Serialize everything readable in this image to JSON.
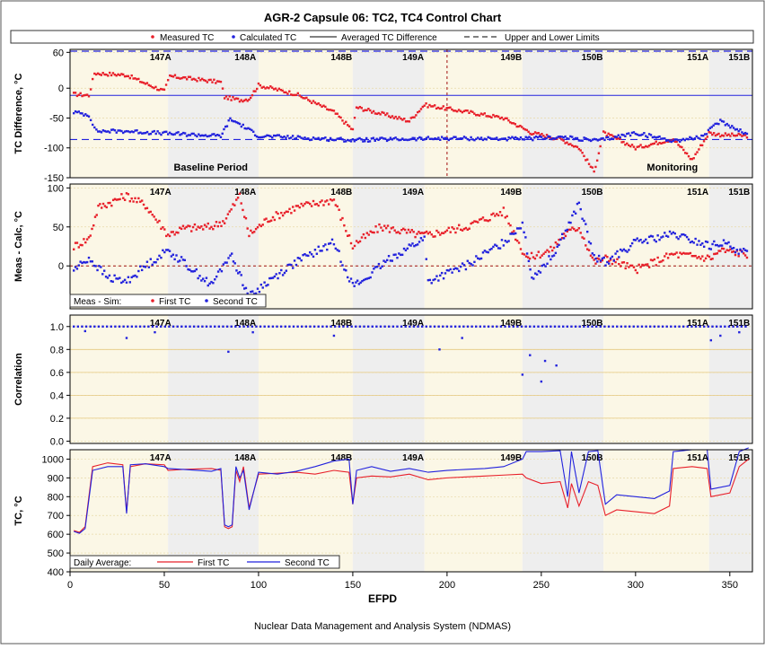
{
  "title": "AGR-2 Capsule 06: TC2, TC4 Control Chart",
  "footer": "Nuclear Data Management and Analysis System (NDMAS)",
  "xlabel": "EFPD",
  "colors": {
    "red": "#e8202a",
    "blue": "#2222dd",
    "bandLight": "#fbf7e6",
    "bandGray": "#eeeeee"
  },
  "legend_top": {
    "measured": "Measured TC",
    "calculated": "Calculated TC",
    "averaged": "Averaged TC Difference",
    "limits": "Upper and Lower Limits"
  },
  "cycle_labels": [
    "147A",
    "148A",
    "148B",
    "149A",
    "149B",
    "150B",
    "151A",
    "151B"
  ],
  "chart_data": [
    {
      "type": "scatter",
      "ylabel": "TC Difference, °C",
      "xlim": [
        0,
        362
      ],
      "ylim": [
        -150,
        65
      ],
      "yticks": [
        60,
        0,
        -50,
        -100,
        -150
      ],
      "annotations": [
        "Baseline Period",
        "Monitoring"
      ],
      "averaged_tc_difference": -12,
      "upper_limit": 62,
      "lower_limit": -86,
      "marker_x": 200,
      "series": [
        {
          "name": "Measured TC",
          "x": [
            2,
            10,
            13,
            30,
            40,
            50,
            53,
            80,
            82,
            90,
            95,
            100,
            120,
            140,
            150,
            152,
            180,
            188,
            230,
            245,
            260,
            270,
            278,
            283,
            290,
            300,
            320,
            330,
            339,
            345,
            360
          ],
          "y": [
            -10,
            -12,
            25,
            22,
            8,
            -5,
            20,
            10,
            -15,
            -20,
            -18,
            5,
            -10,
            -40,
            -70,
            -32,
            -55,
            -28,
            -50,
            -75,
            -85,
            -100,
            -140,
            -75,
            -85,
            -100,
            -85,
            -120,
            -75,
            -78,
            -80
          ]
        },
        {
          "name": "Calculated TC",
          "x": [
            2,
            10,
            14,
            30,
            52,
            80,
            85,
            90,
            100,
            150,
            200,
            240,
            260,
            280,
            300,
            320,
            335,
            345,
            360
          ],
          "y": [
            -40,
            -45,
            -72,
            -72,
            -76,
            -80,
            -52,
            -60,
            -80,
            -87,
            -84,
            -85,
            -82,
            -88,
            -75,
            -88,
            -82,
            -55,
            -78
          ]
        }
      ]
    },
    {
      "type": "scatter",
      "ylabel": "Meas - Calc, °C",
      "xlim": [
        0,
        362
      ],
      "ylim": [
        -55,
        105
      ],
      "yticks": [
        100,
        50,
        0
      ],
      "legend": {
        "title": "Meas - Sim:",
        "first": "First TC",
        "second": "Second TC"
      },
      "series": [
        {
          "name": "First TC",
          "x": [
            2,
            10,
            15,
            30,
            40,
            52,
            60,
            75,
            82,
            90,
            95,
            105,
            120,
            140,
            150,
            152,
            165,
            185,
            190,
            210,
            230,
            240,
            243,
            255,
            262,
            270,
            278,
            285,
            300,
            320,
            340,
            345,
            360
          ],
          "y": [
            25,
            35,
            75,
            90,
            78,
            40,
            48,
            50,
            58,
            90,
            40,
            60,
            75,
            85,
            25,
            30,
            50,
            40,
            40,
            50,
            70,
            20,
            10,
            20,
            40,
            50,
            5,
            10,
            -5,
            15,
            10,
            20,
            15
          ]
        },
        {
          "name": "Second TC",
          "x": [
            2,
            10,
            20,
            30,
            40,
            52,
            60,
            75,
            85,
            90,
            95,
            105,
            120,
            140,
            150,
            155,
            170,
            188,
            190,
            210,
            230,
            240,
            245,
            255,
            262,
            270,
            278,
            285,
            300,
            320,
            340,
            345,
            360
          ],
          "y": [
            -5,
            10,
            -15,
            -20,
            0,
            20,
            5,
            -25,
            15,
            -10,
            -40,
            -20,
            5,
            30,
            -25,
            -20,
            10,
            35,
            -20,
            0,
            30,
            55,
            -15,
            10,
            40,
            80,
            10,
            5,
            30,
            40,
            25,
            30,
            15
          ]
        }
      ]
    },
    {
      "type": "scatter",
      "ylabel": "Correlation",
      "xlim": [
        0,
        362
      ],
      "ylim": [
        -0.02,
        1.1
      ],
      "yticks": [
        1.0,
        0.8,
        0.6,
        0.4,
        0.2,
        0.0
      ],
      "series": [
        {
          "name": "Correlation",
          "base": 1.0,
          "outliers_x": [
            8,
            30,
            45,
            84,
            97,
            140,
            196,
            208,
            240,
            244,
            250,
            252,
            258,
            340,
            345,
            355
          ],
          "outliers_y": [
            0.96,
            0.9,
            0.95,
            0.78,
            0.95,
            0.92,
            0.8,
            0.9,
            0.58,
            0.75,
            0.52,
            0.7,
            0.66,
            0.88,
            0.92,
            0.95
          ]
        }
      ]
    },
    {
      "type": "line",
      "ylabel": "TC, °C",
      "xlim": [
        0,
        362
      ],
      "ylim": [
        400,
        1050
      ],
      "yticks": [
        1000,
        900,
        800,
        700,
        600,
        500,
        400
      ],
      "legend": {
        "title": "Daily Average:",
        "first": "First TC",
        "second": "Second TC"
      },
      "series": [
        {
          "name": "First TC",
          "x": [
            2,
            5,
            8,
            12,
            20,
            28,
            30,
            32,
            40,
            50,
            52,
            60,
            75,
            80,
            82,
            84,
            86,
            88,
            90,
            92,
            95,
            100,
            110,
            120,
            130,
            140,
            148,
            150,
            152,
            160,
            170,
            180,
            190,
            200,
            210,
            220,
            230,
            240,
            242,
            250,
            260,
            264,
            266,
            270,
            275,
            280,
            284,
            290,
            300,
            310,
            318,
            320,
            330,
            338,
            340,
            350,
            355,
            360
          ],
          "y": [
            620,
            610,
            640,
            960,
            980,
            970,
            720,
            960,
            975,
            970,
            940,
            945,
            950,
            940,
            640,
            630,
            640,
            940,
            880,
            960,
            740,
            920,
            925,
            930,
            920,
            940,
            930,
            760,
            900,
            910,
            905,
            920,
            890,
            900,
            905,
            910,
            915,
            920,
            900,
            870,
            880,
            740,
            870,
            750,
            880,
            860,
            700,
            730,
            720,
            710,
            750,
            950,
            960,
            950,
            800,
            820,
            960,
            1000
          ]
        },
        {
          "name": "Second TC",
          "x": [
            2,
            5,
            8,
            12,
            20,
            28,
            30,
            32,
            40,
            50,
            52,
            60,
            75,
            80,
            82,
            84,
            86,
            88,
            90,
            92,
            95,
            100,
            110,
            120,
            130,
            140,
            148,
            150,
            152,
            160,
            170,
            180,
            190,
            200,
            210,
            220,
            230,
            240,
            242,
            250,
            260,
            264,
            266,
            270,
            275,
            280,
            284,
            290,
            300,
            310,
            318,
            320,
            330,
            338,
            340,
            350,
            355,
            360
          ],
          "y": [
            615,
            605,
            630,
            940,
            960,
            960,
            710,
            970,
            975,
            960,
            950,
            945,
            935,
            950,
            650,
            640,
            650,
            960,
            900,
            940,
            730,
            930,
            920,
            935,
            960,
            990,
            1000,
            760,
            940,
            960,
            935,
            950,
            930,
            940,
            945,
            950,
            960,
            1000,
            1040,
            1040,
            1045,
            800,
            1040,
            820,
            1040,
            1045,
            760,
            810,
            800,
            790,
            830,
            1040,
            1050,
            1050,
            840,
            860,
            1040,
            1060
          ]
        }
      ]
    }
  ],
  "xticks": [
    0,
    50,
    100,
    150,
    200,
    250,
    300,
    350
  ],
  "bands": [
    {
      "from": 0,
      "to": 52,
      "fill": "light"
    },
    {
      "from": 52,
      "to": 100,
      "fill": "gray"
    },
    {
      "from": 100,
      "to": 150,
      "fill": "light"
    },
    {
      "from": 150,
      "to": 188,
      "fill": "gray"
    },
    {
      "from": 188,
      "to": 240,
      "fill": "light"
    },
    {
      "from": 240,
      "to": 283,
      "fill": "gray"
    },
    {
      "from": 283,
      "to": 339,
      "fill": "light"
    },
    {
      "from": 339,
      "to": 362,
      "fill": "gray"
    }
  ],
  "cycle_label_x": [
    48,
    93,
    144,
    182,
    234,
    277,
    333,
    355
  ]
}
